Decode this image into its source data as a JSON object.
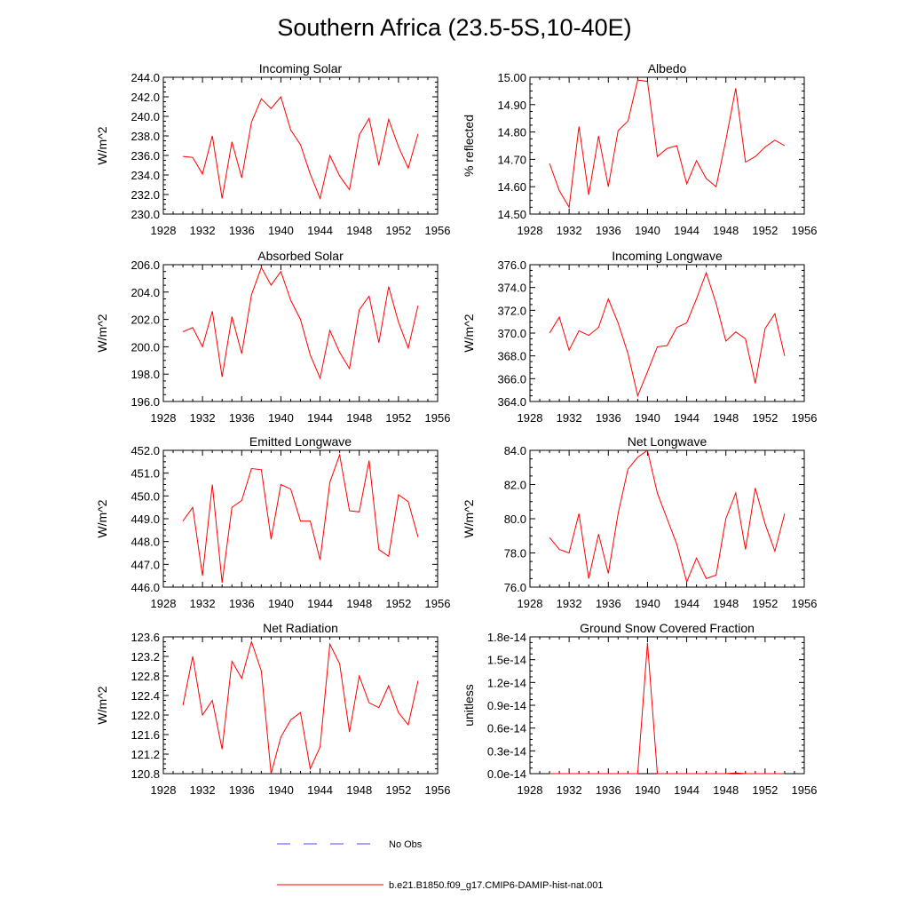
{
  "title": "Southern Africa (23.5-5S,10-40E)",
  "colors": {
    "model": "#ff0000",
    "obs": "#4a4aff",
    "axis": "#000000"
  },
  "legend": {
    "items": [
      {
        "label": "No Obs",
        "style": "dashed",
        "color": "#4a4aff"
      },
      {
        "label": "b.e21.B1850.f09_g17.CMIP6-DAMIP-hist-nat.001",
        "style": "solid",
        "color": "#ff0000"
      }
    ]
  },
  "chart_data": [
    {
      "type": "line",
      "title": "Incoming Solar",
      "ylabel": "W/m^2",
      "xlim": [
        1928,
        1956
      ],
      "ylim": [
        230,
        244
      ],
      "x_ticks": [
        "1928",
        "1932",
        "1936",
        "1940",
        "1944",
        "1948",
        "1952",
        "1956"
      ],
      "y_ticks": [
        "230.0",
        "232.0",
        "234.0",
        "236.0",
        "238.0",
        "240.0",
        "242.0",
        "244.0"
      ],
      "series": [
        {
          "x": [
            1930,
            1931,
            1932,
            1933,
            1934,
            1935,
            1936,
            1937,
            1938,
            1939,
            1940,
            1941,
            1942,
            1943,
            1944,
            1945,
            1946,
            1947,
            1948,
            1949,
            1950,
            1951,
            1952,
            1953,
            1954
          ],
          "values": [
            235.9,
            235.8,
            234.1,
            238.0,
            231.6,
            237.4,
            233.7,
            239.4,
            241.8,
            240.8,
            242.0,
            238.6,
            237.1,
            234.1,
            231.6,
            236.0,
            233.9,
            232.5,
            238.1,
            239.8,
            235.0,
            239.7,
            236.9,
            234.7,
            238.2
          ]
        }
      ]
    },
    {
      "type": "line",
      "title": "Albedo",
      "ylabel": "% reflected",
      "xlim": [
        1928,
        1956
      ],
      "ylim": [
        14.5,
        15.0
      ],
      "x_ticks": [
        "1928",
        "1932",
        "1936",
        "1940",
        "1944",
        "1948",
        "1952",
        "1956"
      ],
      "y_ticks": [
        "14.50",
        "14.60",
        "14.70",
        "14.80",
        "14.90",
        "15.00"
      ],
      "series": [
        {
          "x": [
            1930,
            1931,
            1932,
            1933,
            1934,
            1935,
            1936,
            1937,
            1938,
            1939,
            1940,
            1941,
            1942,
            1943,
            1944,
            1945,
            1946,
            1947,
            1948,
            1949,
            1950,
            1951,
            1952,
            1953,
            1954
          ],
          "values": [
            14.685,
            14.585,
            14.525,
            14.82,
            14.57,
            14.785,
            14.6,
            14.805,
            14.84,
            14.99,
            14.985,
            14.71,
            14.74,
            14.75,
            14.61,
            14.695,
            14.63,
            14.6,
            14.77,
            14.96,
            14.69,
            14.71,
            14.745,
            14.77,
            14.75
          ]
        }
      ]
    },
    {
      "type": "line",
      "title": "Absorbed Solar",
      "ylabel": "W/m^2",
      "xlim": [
        1928,
        1956
      ],
      "ylim": [
        196,
        206
      ],
      "x_ticks": [
        "1928",
        "1932",
        "1936",
        "1940",
        "1944",
        "1948",
        "1952",
        "1956"
      ],
      "y_ticks": [
        "196.0",
        "198.0",
        "200.0",
        "202.0",
        "204.0",
        "206.0"
      ],
      "series": [
        {
          "x": [
            1930,
            1931,
            1932,
            1933,
            1934,
            1935,
            1936,
            1937,
            1938,
            1939,
            1940,
            1941,
            1942,
            1943,
            1944,
            1945,
            1946,
            1947,
            1948,
            1949,
            1950,
            1951,
            1952,
            1953,
            1954
          ],
          "values": [
            201.1,
            201.4,
            200.0,
            202.6,
            197.8,
            202.2,
            199.5,
            203.8,
            205.8,
            204.5,
            205.5,
            203.4,
            202.0,
            199.4,
            197.7,
            201.2,
            199.6,
            198.4,
            202.7,
            203.7,
            200.3,
            204.4,
            201.8,
            199.9,
            203.0
          ]
        }
      ]
    },
    {
      "type": "line",
      "title": "Incoming Longwave",
      "ylabel": "W/m^2",
      "xlim": [
        1928,
        1956
      ],
      "ylim": [
        364,
        376
      ],
      "x_ticks": [
        "1928",
        "1932",
        "1936",
        "1940",
        "1944",
        "1948",
        "1952",
        "1956"
      ],
      "y_ticks": [
        "364.0",
        "366.0",
        "368.0",
        "370.0",
        "372.0",
        "374.0",
        "376.0"
      ],
      "series": [
        {
          "x": [
            1930,
            1931,
            1932,
            1933,
            1934,
            1935,
            1936,
            1937,
            1938,
            1939,
            1940,
            1941,
            1942,
            1943,
            1944,
            1945,
            1946,
            1947,
            1948,
            1949,
            1950,
            1951,
            1952,
            1953,
            1954
          ],
          "values": [
            370.0,
            371.4,
            368.5,
            370.2,
            369.8,
            370.5,
            373.0,
            370.9,
            368.2,
            364.5,
            366.6,
            368.8,
            368.9,
            370.5,
            370.9,
            373.0,
            375.3,
            372.6,
            369.3,
            370.1,
            369.5,
            365.6,
            370.4,
            371.7,
            368.0
          ]
        }
      ]
    },
    {
      "type": "line",
      "title": "Emitted Longwave",
      "ylabel": "W/m^2",
      "xlim": [
        1928,
        1956
      ],
      "ylim": [
        446,
        452
      ],
      "x_ticks": [
        "1928",
        "1932",
        "1936",
        "1940",
        "1944",
        "1948",
        "1952",
        "1956"
      ],
      "y_ticks": [
        "446.0",
        "447.0",
        "448.0",
        "449.0",
        "450.0",
        "451.0",
        "452.0"
      ],
      "series": [
        {
          "x": [
            1930,
            1931,
            1932,
            1933,
            1934,
            1935,
            1936,
            1937,
            1938,
            1939,
            1940,
            1941,
            1942,
            1943,
            1944,
            1945,
            1946,
            1947,
            1948,
            1949,
            1950,
            1951,
            1952,
            1953,
            1954
          ],
          "values": [
            448.9,
            449.5,
            446.5,
            450.5,
            446.2,
            449.5,
            449.8,
            451.2,
            451.15,
            448.1,
            450.5,
            450.3,
            448.9,
            448.9,
            447.2,
            450.6,
            451.8,
            449.35,
            449.3,
            451.55,
            447.65,
            447.35,
            450.05,
            449.75,
            448.2
          ]
        }
      ]
    },
    {
      "type": "line",
      "title": "Net Longwave",
      "ylabel": "W/m^2",
      "xlim": [
        1928,
        1956
      ],
      "ylim": [
        76,
        84
      ],
      "x_ticks": [
        "1928",
        "1932",
        "1936",
        "1940",
        "1944",
        "1948",
        "1952",
        "1956"
      ],
      "y_ticks": [
        "76.0",
        "78.0",
        "80.0",
        "82.0",
        "84.0"
      ],
      "series": [
        {
          "x": [
            1930,
            1931,
            1932,
            1933,
            1934,
            1935,
            1936,
            1937,
            1938,
            1939,
            1940,
            1941,
            1942,
            1943,
            1944,
            1945,
            1946,
            1947,
            1948,
            1949,
            1950,
            1951,
            1952,
            1953,
            1954
          ],
          "values": [
            78.9,
            78.2,
            78.0,
            80.3,
            76.5,
            79.1,
            76.8,
            80.3,
            82.9,
            83.6,
            84.0,
            81.5,
            80.0,
            78.5,
            76.3,
            77.7,
            76.5,
            76.7,
            80.0,
            81.5,
            78.2,
            81.8,
            79.7,
            78.1,
            80.3
          ]
        }
      ]
    },
    {
      "type": "line",
      "title": "Net Radiation",
      "ylabel": "W/m^2",
      "xlim": [
        1928,
        1956
      ],
      "ylim": [
        120.8,
        123.6
      ],
      "x_ticks": [
        "1928",
        "1932",
        "1936",
        "1940",
        "1944",
        "1948",
        "1952",
        "1956"
      ],
      "y_ticks": [
        "120.8",
        "121.2",
        "121.6",
        "122.0",
        "122.4",
        "122.8",
        "123.2",
        "123.6"
      ],
      "series": [
        {
          "x": [
            1930,
            1931,
            1932,
            1933,
            1934,
            1935,
            1936,
            1937,
            1938,
            1939,
            1940,
            1941,
            1942,
            1943,
            1944,
            1945,
            1946,
            1947,
            1948,
            1949,
            1950,
            1951,
            1952,
            1953,
            1954
          ],
          "values": [
            122.2,
            123.2,
            122.0,
            122.3,
            121.3,
            123.1,
            122.75,
            123.5,
            122.9,
            120.8,
            121.55,
            121.9,
            122.05,
            120.9,
            121.35,
            123.45,
            123.05,
            121.65,
            122.8,
            122.25,
            122.15,
            122.6,
            122.05,
            121.8,
            122.7
          ]
        }
      ]
    },
    {
      "type": "line",
      "title": "Ground Snow Covered Fraction",
      "ylabel": "unitless",
      "xlim": [
        1928,
        1956
      ],
      "ylim": [
        0,
        1.8e-14
      ],
      "x_ticks": [
        "1928",
        "1932",
        "1936",
        "1940",
        "1944",
        "1948",
        "1952",
        "1956"
      ],
      "y_ticks": [
        "0.0e-14",
        "0.3e-14",
        "0.6e-14",
        "0.9e-14",
        "1.2e-14",
        "1.5e-14",
        "1.8e-14"
      ],
      "series": [
        {
          "x": [
            1930,
            1931,
            1932,
            1933,
            1934,
            1935,
            1936,
            1937,
            1938,
            1939,
            1940,
            1941,
            1942,
            1943,
            1944,
            1945,
            1946,
            1947,
            1948,
            1949,
            1950,
            1951,
            1952,
            1953,
            1954
          ],
          "values": [
            0,
            0,
            0,
            0,
            0,
            0,
            0,
            0,
            0,
            0,
            1.72e-14,
            0,
            0,
            0,
            0,
            0,
            0,
            0,
            0,
            1e-16,
            0,
            0,
            0,
            0,
            0
          ]
        }
      ]
    }
  ]
}
